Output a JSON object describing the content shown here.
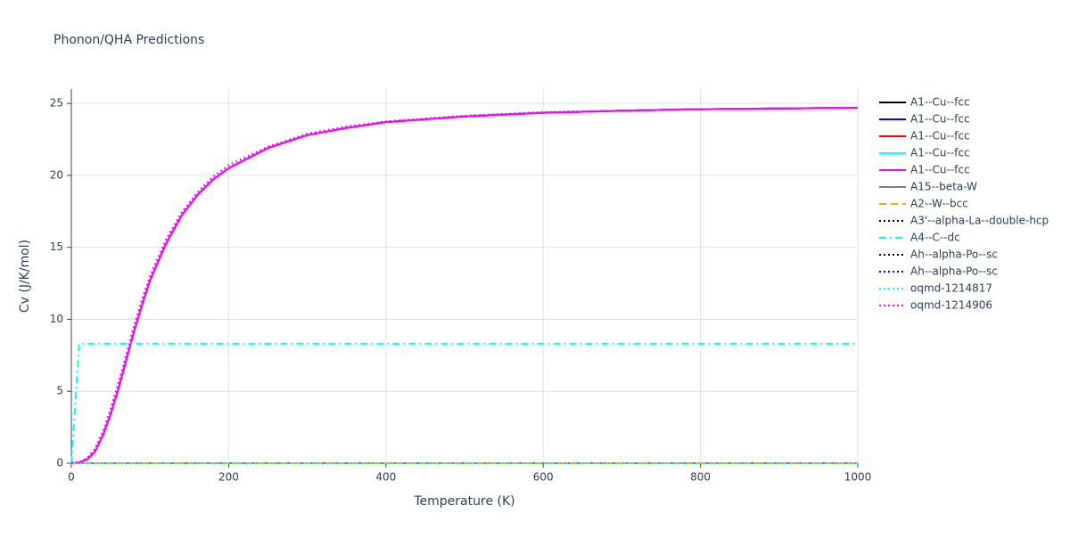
{
  "chart_data": {
    "type": "line",
    "title": "Phonon/QHA Predictions",
    "x_label": "Temperature (K)",
    "y_label": "Cv (J/K/mol)",
    "x": [
      0,
      10,
      20,
      30,
      40,
      50,
      60,
      70,
      80,
      90,
      100,
      120,
      140,
      160,
      180,
      200,
      250,
      300,
      350,
      400,
      500,
      600,
      700,
      800,
      900,
      1000
    ],
    "xlim": [
      0,
      1000
    ],
    "xticks": [
      0,
      200,
      400,
      600,
      800,
      1000
    ],
    "ylim": [
      0,
      26
    ],
    "yticks": [
      0,
      5,
      10,
      15,
      20,
      25
    ],
    "grid": true,
    "legend": "right",
    "series": [
      {
        "name": "A1--Cu--fcc",
        "color": "#000000",
        "dash": "solid",
        "values": [
          0,
          0.05,
          0.25,
          0.8,
          1.9,
          3.4,
          5.2,
          7.2,
          9.2,
          11.0,
          12.7,
          15.2,
          17.2,
          18.6,
          19.7,
          20.5,
          21.9,
          22.8,
          23.3,
          23.7,
          24.1,
          24.35,
          24.5,
          24.6,
          24.65,
          24.7
        ]
      },
      {
        "name": "A1--Cu--fcc",
        "color": "#0000ff",
        "dash": "solid",
        "values": [
          0,
          0.05,
          0.25,
          0.8,
          1.9,
          3.4,
          5.2,
          7.2,
          9.2,
          11.0,
          12.7,
          15.2,
          17.2,
          18.6,
          19.7,
          20.5,
          21.9,
          22.8,
          23.3,
          23.7,
          24.1,
          24.35,
          24.5,
          24.6,
          24.65,
          24.7
        ]
      },
      {
        "name": "A1--Cu--fcc",
        "color": "#ff0000",
        "dash": "solid",
        "values": [
          0,
          0.05,
          0.25,
          0.8,
          1.9,
          3.4,
          5.2,
          7.2,
          9.2,
          11.0,
          12.7,
          15.2,
          17.2,
          18.6,
          19.7,
          20.5,
          21.9,
          22.8,
          23.3,
          23.7,
          24.1,
          24.35,
          24.5,
          24.6,
          24.65,
          24.7
        ]
      },
      {
        "name": "A1--Cu--fcc",
        "color": "#00ffff",
        "dash": "solid",
        "values": [
          0,
          0.05,
          0.25,
          0.8,
          1.9,
          3.4,
          5.2,
          7.2,
          9.2,
          11.0,
          12.7,
          15.2,
          17.2,
          18.6,
          19.7,
          20.5,
          21.9,
          22.8,
          23.3,
          23.7,
          24.1,
          24.35,
          24.5,
          24.6,
          24.65,
          24.7
        ]
      },
      {
        "name": "A1--Cu--fcc",
        "color": "#ff00ff",
        "dash": "solid",
        "values": [
          0,
          0.05,
          0.25,
          0.8,
          1.9,
          3.4,
          5.2,
          7.2,
          9.2,
          11.0,
          12.7,
          15.2,
          17.2,
          18.6,
          19.7,
          20.5,
          21.9,
          22.8,
          23.3,
          23.7,
          24.1,
          24.35,
          24.5,
          24.6,
          24.65,
          24.7
        ]
      },
      {
        "name": "A15--beta-W",
        "color": "#808080",
        "dash": "solid",
        "values": [
          0,
          0,
          0,
          0,
          0,
          0,
          0,
          0,
          0,
          0,
          0,
          0,
          0,
          0,
          0,
          0,
          0,
          0,
          0,
          0,
          0,
          0,
          0,
          0,
          0,
          0
        ]
      },
      {
        "name": "A2--W--bcc",
        "color": "#ffa500",
        "dash": "dash",
        "values": [
          0,
          0,
          0,
          0,
          0,
          0,
          0,
          0,
          0,
          0,
          0,
          0,
          0,
          0,
          0,
          0,
          0,
          0,
          0,
          0,
          0,
          0,
          0,
          0,
          0,
          0
        ]
      },
      {
        "name": "A3'--alpha-La--double-hcp",
        "color": "#000000",
        "dash": "dot",
        "values": [
          0,
          0,
          0,
          0,
          0,
          0,
          0,
          0,
          0,
          0,
          0,
          0,
          0,
          0,
          0,
          0,
          0,
          0,
          0,
          0,
          0,
          0,
          0,
          0,
          0,
          0
        ]
      },
      {
        "name": "A4--C--dc",
        "color": "#00ffff",
        "dash": "dashdot",
        "values": [
          0,
          8.3,
          8.3,
          8.3,
          8.3,
          8.3,
          8.3,
          8.3,
          8.3,
          8.3,
          8.3,
          8.3,
          8.3,
          8.3,
          8.3,
          8.3,
          8.3,
          8.3,
          8.3,
          8.3,
          8.3,
          8.3,
          8.3,
          8.3,
          8.3,
          8.3
        ]
      },
      {
        "name": "Ah--alpha-Po--sc",
        "color": "#000000",
        "dash": "dot",
        "values": [
          0,
          0,
          0,
          0,
          0,
          0,
          0,
          0,
          0,
          0,
          0,
          0,
          0,
          0,
          0,
          0,
          0,
          0,
          0,
          0,
          0,
          0,
          0,
          0,
          0,
          0
        ]
      },
      {
        "name": "Ah--alpha-Po--sc",
        "color": "#0000ff",
        "dash": "dot",
        "values": [
          0,
          0,
          0,
          0,
          0,
          0,
          0,
          0,
          0,
          0,
          0,
          0,
          0,
          0,
          0,
          0,
          0,
          0,
          0,
          0,
          0,
          0,
          0,
          0,
          0,
          0
        ]
      },
      {
        "name": "oqmd-1214817",
        "color": "#00ffff",
        "dash": "dot",
        "values": [
          0,
          0,
          0,
          0,
          0,
          0,
          0,
          0,
          0,
          0,
          0,
          0,
          0,
          0,
          0,
          0,
          0,
          0,
          0,
          0,
          0,
          0,
          0,
          0,
          0,
          0
        ]
      },
      {
        "name": "oqmd-1214906",
        "color": "#ff00ff",
        "dash": "dot",
        "values": [
          0,
          0.07,
          0.35,
          1.0,
          2.2,
          3.8,
          5.6,
          7.6,
          9.6,
          11.4,
          13.0,
          15.5,
          17.4,
          18.8,
          19.9,
          20.7,
          22.0,
          22.9,
          23.4,
          23.75,
          24.15,
          24.4,
          24.5,
          24.6,
          24.65,
          24.7
        ]
      }
    ]
  }
}
